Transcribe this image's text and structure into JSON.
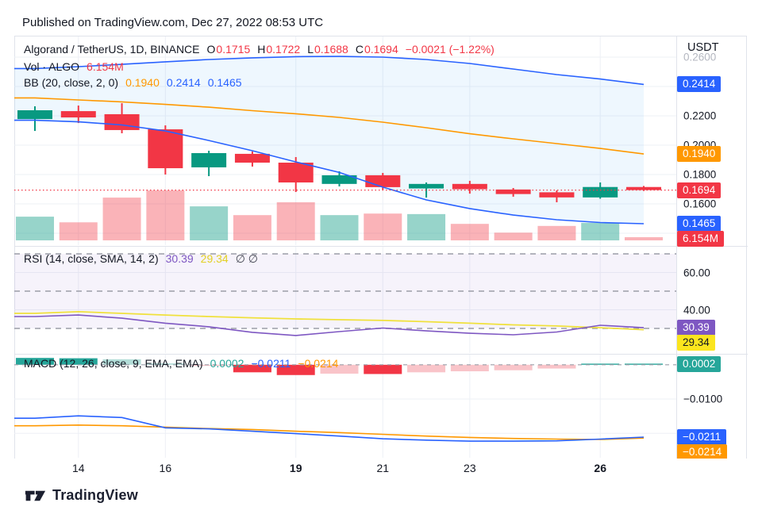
{
  "header": {
    "published": "Published on TradingView.com, Dec 27, 2022 08:53 UTC"
  },
  "footer": {
    "brand": "TradingView"
  },
  "colors": {
    "up": "#089981",
    "down": "#f23645",
    "vol_up": "rgba(8,153,129,0.42)",
    "vol_down": "rgba(242,54,69,0.38)",
    "blue": "#2962ff",
    "orange": "#ff9800",
    "purple": "#7e57c2",
    "yellow_line": "#f0e13c",
    "yellow_badge": "#fbe51e",
    "teal": "#26a69a",
    "hist_up": "#26a69a",
    "hist_up_light": "#b3ddd8",
    "hist_down": "#f23645",
    "hist_down_light": "#f9c4c9",
    "grid": "#edf0f6",
    "dashed": "#9b9ea8",
    "red": "#f23645",
    "bb_fill": "rgba(33,150,243,0.08)",
    "rsi_fill": "rgba(126,87,194,0.07)",
    "text": "#131722"
  },
  "legends": {
    "main": {
      "title": "Algorand / TetherUS, 1D, BINANCE",
      "o_label": "O",
      "o": "0.1715",
      "h_label": "H",
      "h": "0.1722",
      "l_label": "L",
      "l": "0.1688",
      "c_label": "C",
      "c": "0.1694",
      "change": "−0.0021 (−1.22%)"
    },
    "volume": {
      "title": "Vol · ALGO",
      "value": "6.154M"
    },
    "bb": {
      "title": "BB (20, close, 2, 0)",
      "basis": "0.1940",
      "upper": "0.2414",
      "lower": "0.1465"
    },
    "rsi": {
      "title": "RSI (14, close, SMA, 14, 2)",
      "value": "30.39",
      "ma": "29.34",
      "empty": "∅ ∅"
    },
    "macd": {
      "title": "MACD (12, 26, close, 9, EMA, EMA)",
      "hist": "0.0002",
      "macd": "−0.0211",
      "signal": "−0.0214"
    }
  },
  "axis": {
    "currency": "USDT"
  },
  "chart_data": {
    "type": "candlestick",
    "symbol": "Algorand / TetherUS",
    "interval": "1D",
    "exchange": "BINANCE",
    "last_close": 0.1694,
    "dates": [
      "Dec 13",
      "Dec 14",
      "Dec 15",
      "Dec 16",
      "Dec 17",
      "Dec 18",
      "Dec 19",
      "Dec 20",
      "Dec 21",
      "Dec 22",
      "Dec 23",
      "Dec 24",
      "Dec 25",
      "Dec 26",
      "Dec 27"
    ],
    "ohlc": [
      [
        0.2178,
        0.2265,
        0.2097,
        0.2238
      ],
      [
        0.2232,
        0.227,
        0.2151,
        0.2189
      ],
      [
        0.2211,
        0.2286,
        0.2081,
        0.2103
      ],
      [
        0.2108,
        0.2135,
        0.18,
        0.1843
      ],
      [
        0.1849,
        0.1962,
        0.1789,
        0.1946
      ],
      [
        0.1941,
        0.1957,
        0.1854,
        0.1881
      ],
      [
        0.1881,
        0.1919,
        0.1681,
        0.1746
      ],
      [
        0.1736,
        0.1822,
        0.1719,
        0.1795
      ],
      [
        0.1795,
        0.1811,
        0.1697,
        0.1714
      ],
      [
        0.1705,
        0.1746,
        0.1643,
        0.1736
      ],
      [
        0.1736,
        0.1757,
        0.167,
        0.17
      ],
      [
        0.1698,
        0.1708,
        0.1649,
        0.1667
      ],
      [
        0.1679,
        0.1692,
        0.1611,
        0.1644
      ],
      [
        0.1644,
        0.1746,
        0.1635,
        0.1715
      ],
      [
        0.1715,
        0.1722,
        0.1688,
        0.1694
      ]
    ],
    "volume_m": [
      46,
      35,
      83,
      97,
      66,
      49,
      74,
      49,
      52,
      51,
      32,
      15,
      28,
      34,
      6.154
    ],
    "bb": {
      "upper": [
        0.2522,
        0.2535,
        0.2551,
        0.2568,
        0.2584,
        0.2595,
        0.2603,
        0.2605,
        0.26,
        0.2584,
        0.2557,
        0.2519,
        0.2481,
        0.2451,
        0.2414
      ],
      "basis": [
        0.2322,
        0.2308,
        0.2295,
        0.2278,
        0.2259,
        0.2235,
        0.2214,
        0.2189,
        0.2157,
        0.2119,
        0.2078,
        0.2043,
        0.2011,
        0.1978,
        0.194
      ],
      "lower": [
        0.217,
        0.2159,
        0.2138,
        0.2097,
        0.2032,
        0.1962,
        0.1886,
        0.1814,
        0.1714,
        0.1627,
        0.1568,
        0.1524,
        0.1492,
        0.1473,
        0.1465
      ]
    },
    "rsi": {
      "line": [
        36.4,
        37.2,
        35.5,
        32.8,
        30.9,
        27.9,
        26.2,
        28.3,
        30.2,
        28.7,
        27.4,
        26.6,
        28.1,
        31.7,
        30.39
      ],
      "ma": [
        38.1,
        39.0,
        38.1,
        37.2,
        36.4,
        35.7,
        35.1,
        34.7,
        34.3,
        33.6,
        32.8,
        31.9,
        31.3,
        30.4,
        29.34
      ],
      "levels_dashed": [
        70,
        50,
        30
      ],
      "levels_grid": [
        60,
        40
      ]
    },
    "macd": {
      "macd": [
        -0.0156,
        -0.0149,
        -0.0154,
        -0.0184,
        -0.0187,
        -0.0194,
        -0.0201,
        -0.0208,
        -0.0216,
        -0.022,
        -0.0223,
        -0.0223,
        -0.0222,
        -0.0217,
        -0.0211
      ],
      "signal": [
        -0.0178,
        -0.0176,
        -0.0178,
        -0.0182,
        -0.0186,
        -0.0189,
        -0.0194,
        -0.0198,
        -0.0203,
        -0.0208,
        -0.0212,
        -0.0215,
        -0.0217,
        -0.0218,
        -0.0214
      ],
      "hist": [
        0.002,
        0.0019,
        0.0016,
        0.0004,
        -0.0003,
        -0.0022,
        -0.003,
        -0.0026,
        -0.0027,
        -0.0022,
        -0.0019,
        -0.0016,
        -0.0011,
        0.0001,
        0.0002
      ],
      "hist_colors": [
        "up",
        "up",
        "up_light",
        "up_light",
        "down_light",
        "down",
        "down",
        "down_light",
        "down",
        "down_light",
        "down_light",
        "down_light",
        "down_light",
        "up",
        "up"
      ],
      "grid_values": [
        -0.01,
        -0.02
      ],
      "zero_dashed": 0
    },
    "price_grid": [
      0.26,
      0.24,
      0.22,
      0.2,
      0.18,
      0.16,
      0.14
    ],
    "y_axis": {
      "main_labels": [
        {
          "text": "0.2600",
          "price": 0.26,
          "faded": true
        },
        {
          "text": "0.2200",
          "price": 0.22
        },
        {
          "text": "0.2000",
          "price": 0.2
        },
        {
          "text": "0.1800",
          "price": 0.18
        },
        {
          "text": "0.1600",
          "price": 0.16
        }
      ],
      "main_badges": [
        {
          "text": "0.2414",
          "price": 0.2414,
          "bg": "blue"
        },
        {
          "text": "0.1940",
          "price": 0.194,
          "bg": "orange"
        },
        {
          "text": "0.1694",
          "price": 0.1694,
          "bg": "red"
        },
        {
          "text": "0.1465",
          "price": 0.1465,
          "bg": "blue"
        },
        {
          "text": "6.154M",
          "volume": 6.154,
          "bg": "red"
        }
      ],
      "rsi_labels": [
        {
          "text": "60.00",
          "level": 60
        },
        {
          "text": "40.00",
          "level": 40
        }
      ],
      "rsi_badges": [
        {
          "text": "30.39",
          "level": 30.39,
          "bg": "purple"
        },
        {
          "text": "29.34",
          "level": 29.34,
          "bg": "yellow_badge",
          "fg": "#131722"
        }
      ],
      "macd_labels": [
        {
          "text": "−0.0100",
          "value": -0.01
        }
      ],
      "macd_badges": [
        {
          "text": "0.0002",
          "value": 0.0002,
          "bg": "teal"
        },
        {
          "text": "−0.0211",
          "value": -0.0211,
          "bg": "blue"
        },
        {
          "text": "−0.0214",
          "value": -0.0214,
          "bg": "orange"
        }
      ]
    },
    "x_ticks": [
      {
        "label": "14",
        "i": 1,
        "bold": false
      },
      {
        "label": "16",
        "i": 3,
        "bold": false
      },
      {
        "label": "19",
        "i": 6,
        "bold": true
      },
      {
        "label": "21",
        "i": 8,
        "bold": false
      },
      {
        "label": "23",
        "i": 10,
        "bold": false
      },
      {
        "label": "26",
        "i": 13,
        "bold": true
      }
    ]
  }
}
